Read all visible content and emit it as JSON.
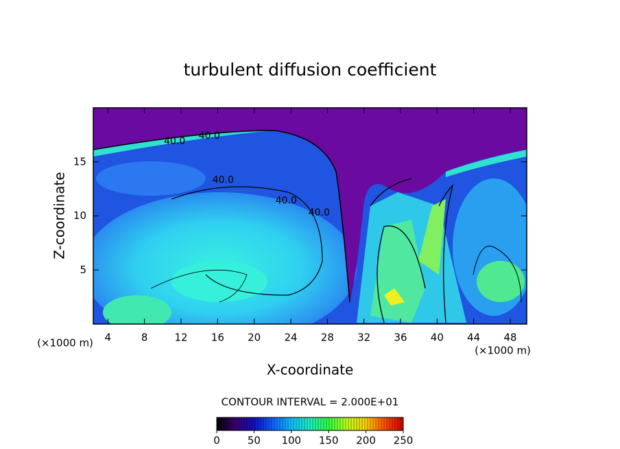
{
  "chart_data": {
    "type": "contour",
    "title": "turbulent diffusion coefficient",
    "x_label": "X-coordinate",
    "y_label": "Z-coordinate",
    "x_unit": "(×1000 m)",
    "y_unit": "(×1000 m)",
    "xlim": [
      2.4,
      49.8
    ],
    "xticks": [
      4,
      8,
      12,
      16,
      20,
      24,
      28,
      32,
      36,
      40,
      44,
      48
    ],
    "ylim": [
      0,
      20
    ],
    "yticks": [
      5,
      10,
      15
    ],
    "contour_interval_label": "CONTOUR INTERVAL = 2.000E+01",
    "contour_labels": [
      {
        "text": "40.0",
        "x": 11.3,
        "y": 16.9
      },
      {
        "text": "40.0",
        "x": 15.1,
        "y": 17.4
      },
      {
        "text": "40.0",
        "x": 16.6,
        "y": 13.3
      },
      {
        "text": "40.0",
        "x": 23.5,
        "y": 11.4
      },
      {
        "text": "40.0",
        "x": 27.1,
        "y": 10.3
      }
    ],
    "colorbar": {
      "clim": [
        0,
        250
      ],
      "ticks": [
        0,
        50,
        100,
        150,
        200,
        250
      ],
      "colormap": [
        "#000000",
        "#3a0070",
        "#1010c0",
        "#1060ff",
        "#10c0ff",
        "#20f0c0",
        "#30ff40",
        "#c0ff20",
        "#ffd000",
        "#ff5000",
        "#d00000"
      ]
    }
  }
}
